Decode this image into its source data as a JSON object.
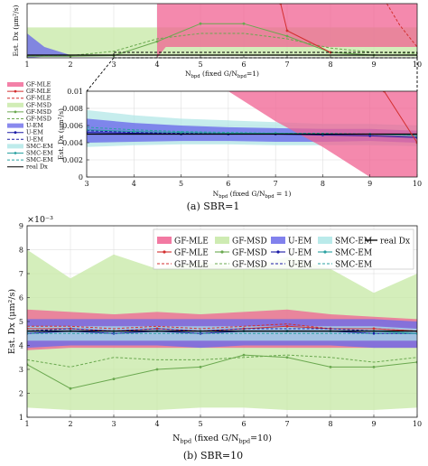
{
  "legend_entries": [
    {
      "name": "GF-MLE",
      "kind": "band",
      "color": "#f06292"
    },
    {
      "name": "GF-MLE",
      "kind": "line",
      "color": "#d32f2f",
      "marker": "dot"
    },
    {
      "name": "GF-MLE",
      "kind": "line",
      "color": "#d32f2f",
      "dash": true
    },
    {
      "name": "GF-MSD",
      "kind": "band",
      "color": "#c5e8a4"
    },
    {
      "name": "GF-MSD",
      "kind": "line",
      "color": "#6aa84f",
      "marker": "dot"
    },
    {
      "name": "GF-MSD",
      "kind": "line",
      "color": "#6aa84f",
      "dash": true
    },
    {
      "name": "U-EM",
      "kind": "band",
      "color": "#6b6bea"
    },
    {
      "name": "U-EM",
      "kind": "line",
      "color": "#1a1aa6",
      "marker": "dot"
    },
    {
      "name": "U-EM",
      "kind": "line",
      "color": "#1a1aa6",
      "dash": true
    },
    {
      "name": "SMC-EM",
      "kind": "band",
      "color": "#aee6e6"
    },
    {
      "name": "SMC-EM",
      "kind": "line",
      "color": "#2aa1a1",
      "marker": "dot"
    },
    {
      "name": "SMC-EM",
      "kind": "line",
      "color": "#2aa1a1",
      "dash": true
    },
    {
      "name": "real Dx",
      "kind": "line",
      "color": "#000000"
    }
  ],
  "captions": {
    "a": "(a)  SBR=1",
    "b": "(b)  SBR=10"
  },
  "colors": {
    "gfmle_band": "#f06292",
    "gfmle_line": "#d32f2f",
    "gfmsd_band": "#c5e8a4",
    "gfmsd_line": "#6aa84f",
    "uem_band": "#6b6bea",
    "uem_line": "#1a1aa6",
    "smcem_band": "#aee6e6",
    "smcem_line": "#2aa1a1",
    "real": "#000000"
  },
  "chart_data": [
    {
      "type": "line",
      "id": "a-top",
      "xlabel": "N_bpd (fixed G/N_bpd=1)",
      "ylabel": "Est. Dx (μm²/s)",
      "xlim": [
        1,
        10
      ],
      "ylim": [
        0,
        0.1
      ],
      "xticks": [
        1,
        2,
        3,
        4,
        5,
        6,
        7,
        8,
        9,
        10
      ],
      "yticks": [],
      "grid": true,
      "x": [
        1,
        2,
        3,
        4,
        5,
        6,
        7,
        8,
        9,
        10
      ],
      "bands": [
        {
          "name": "GF-MSD",
          "lower": [
            0.002,
            0.002,
            0.003,
            0.003,
            0.003,
            0.003,
            0.003,
            0.002,
            0.002,
            0.002
          ],
          "upper": [
            0.056,
            0.056,
            0.056,
            0.056,
            0.056,
            0.056,
            0.056,
            0.056,
            0.056,
            0.056
          ]
        },
        {
          "name": "GF-MLE",
          "x": [
            4.0,
            4.2,
            5,
            6,
            7,
            8,
            9,
            10
          ],
          "lower": [
            0.0,
            0.02,
            0.02,
            0.02,
            0.02,
            0.02,
            0.02,
            0.02
          ],
          "upper": [
            0.1,
            0.1,
            0.1,
            0.1,
            0.1,
            0.1,
            0.1,
            0.1
          ]
        },
        {
          "name": "U-EM",
          "x": [
            1,
            1.4,
            2
          ],
          "lower": [
            0.0,
            0.002,
            0.002
          ],
          "upper": [
            0.045,
            0.02,
            0.005
          ]
        }
      ],
      "series": [
        {
          "name": "GF-MSD",
          "style": "line",
          "values": [
            0.003,
            0.003,
            0.004,
            0.03,
            0.063,
            0.063,
            0.04,
            0.01,
            0.005,
            0.005
          ]
        },
        {
          "name": "GF-MSD",
          "style": "dash",
          "values": [
            0.004,
            0.004,
            0.012,
            0.035,
            0.045,
            0.045,
            0.035,
            0.018,
            0.01,
            0.008
          ]
        },
        {
          "name": "GF-MLE",
          "style": "line",
          "x": [
            6.85,
            7.0,
            8.0
          ],
          "values": [
            0.1,
            0.05,
            0.01
          ]
        },
        {
          "name": "GF-MLE",
          "style": "dash",
          "x": [
            9.3,
            9.6,
            10
          ],
          "values": [
            0.1,
            0.06,
            0.02
          ]
        },
        {
          "name": "real Dx",
          "style": "line",
          "values": [
            0.005,
            0.005,
            0.005,
            0.005,
            0.005,
            0.005,
            0.005,
            0.005,
            0.005,
            0.005
          ]
        }
      ]
    },
    {
      "type": "line",
      "id": "a-zoom",
      "xlabel": "N_bpd (fixed G/N_bpd = 1)",
      "ylabel": "Est. Dx (μm²/s)",
      "xlim": [
        3,
        10
      ],
      "ylim": [
        0,
        0.01
      ],
      "xticks": [
        3,
        4,
        5,
        6,
        7,
        8,
        9,
        10
      ],
      "yticks": [
        0,
        0.002,
        0.004,
        0.006,
        0.008,
        0.01
      ],
      "ytick_labels": [
        "0",
        "0.002",
        "0.004",
        "0.006",
        "0.008",
        "0.01"
      ],
      "grid": true,
      "x": [
        3,
        4,
        5,
        6,
        7,
        8,
        9,
        10
      ],
      "bands": [
        {
          "name": "SMC-EM",
          "lower": [
            0.0035,
            0.0037,
            0.0038,
            0.0038,
            0.0037,
            0.0037,
            0.0037,
            0.0036
          ],
          "upper": [
            0.0078,
            0.0072,
            0.0068,
            0.0066,
            0.0064,
            0.0062,
            0.0062,
            0.006
          ]
        },
        {
          "name": "U-EM",
          "lower": [
            0.004,
            0.0041,
            0.0042,
            0.0042,
            0.0041,
            0.0041,
            0.0042,
            0.004
          ],
          "upper": [
            0.0068,
            0.0063,
            0.006,
            0.0058,
            0.0057,
            0.0056,
            0.0056,
            0.0054
          ]
        },
        {
          "name": "GF-MLE",
          "x": [
            6,
            7,
            8,
            9,
            10
          ],
          "lower": [
            0.01,
            0.0065,
            0.0035,
            0.0,
            0.0
          ],
          "upper": [
            0.01,
            0.01,
            0.01,
            0.01,
            0.01
          ]
        }
      ],
      "series": [
        {
          "name": "U-EM",
          "style": "line",
          "values": [
            0.0052,
            0.0051,
            0.005,
            0.005,
            0.005,
            0.0049,
            0.0048,
            0.0046
          ]
        },
        {
          "name": "U-EM",
          "style": "dash",
          "values": [
            0.0054,
            0.0052,
            0.0051,
            0.0051,
            0.005,
            0.005,
            0.005,
            0.0049
          ]
        },
        {
          "name": "SMC-EM",
          "style": "line",
          "values": [
            0.0055,
            0.0053,
            0.0052,
            0.0051,
            0.0051,
            0.005,
            0.005,
            0.0048
          ]
        },
        {
          "name": "SMC-EM",
          "style": "dash",
          "values": [
            0.0058,
            0.0055,
            0.0053,
            0.0052,
            0.0051,
            0.0051,
            0.005,
            0.0049
          ]
        },
        {
          "name": "real Dx",
          "style": "line",
          "values": [
            0.005,
            0.005,
            0.005,
            0.005,
            0.005,
            0.005,
            0.005,
            0.005
          ]
        },
        {
          "name": "GF-MLE",
          "style": "line",
          "x": [
            9.3,
            10
          ],
          "values": [
            0.01,
            0.004
          ]
        }
      ]
    },
    {
      "type": "line",
      "id": "b",
      "title": "",
      "exponent_label": "×10⁻³",
      "xlabel": "N_bpd (fixed G/N_bpd=10)",
      "ylabel": "Est. Dx (μm²/s)",
      "xlim": [
        1,
        10
      ],
      "ylim": [
        0.001,
        0.009
      ],
      "xticks": [
        1,
        2,
        3,
        4,
        5,
        6,
        7,
        8,
        9,
        10
      ],
      "yticks": [
        0.001,
        0.002,
        0.003,
        0.004,
        0.005,
        0.006,
        0.007,
        0.008,
        0.009
      ],
      "ytick_labels": [
        "1",
        "2",
        "3",
        "4",
        "5",
        "6",
        "7",
        "8",
        "9"
      ],
      "grid": true,
      "legend_position": "top-right",
      "x": [
        1,
        2,
        3,
        4,
        5,
        6,
        7,
        8,
        9,
        10
      ],
      "bands": [
        {
          "name": "GF-MSD",
          "lower": [
            0.0014,
            0.0013,
            0.0013,
            0.0013,
            0.0014,
            0.0014,
            0.0013,
            0.0013,
            0.0013,
            0.0014
          ],
          "upper": [
            0.008,
            0.0068,
            0.0078,
            0.0072,
            0.0075,
            0.0072,
            0.0077,
            0.0072,
            0.0062,
            0.007
          ]
        },
        {
          "name": "GF-MLE",
          "lower": [
            0.0038,
            0.0039,
            0.0039,
            0.0039,
            0.0039,
            0.0039,
            0.0039,
            0.0039,
            0.0039,
            0.0039
          ],
          "upper": [
            0.0055,
            0.0054,
            0.0053,
            0.0054,
            0.0053,
            0.0054,
            0.0055,
            0.0053,
            0.0052,
            0.0051
          ]
        },
        {
          "name": "U-EM",
          "lower": [
            0.0039,
            0.004,
            0.004,
            0.004,
            0.0039,
            0.004,
            0.004,
            0.004,
            0.0039,
            0.0039
          ],
          "upper": [
            0.0051,
            0.0051,
            0.0051,
            0.0051,
            0.0051,
            0.0051,
            0.0051,
            0.0051,
            0.0051,
            0.005
          ]
        },
        {
          "name": "SMC-EM",
          "lower": [
            0.0042,
            0.0042,
            0.0042,
            0.0042,
            0.0042,
            0.0042,
            0.0042,
            0.0042,
            0.0042,
            0.0042
          ],
          "upper": [
            0.0048,
            0.0048,
            0.0048,
            0.0048,
            0.0048,
            0.0048,
            0.0048,
            0.0048,
            0.0048,
            0.0047
          ]
        }
      ],
      "series": [
        {
          "name": "GF-MSD",
          "style": "line",
          "values": [
            0.0032,
            0.0022,
            0.0026,
            0.003,
            0.0031,
            0.0036,
            0.0035,
            0.0031,
            0.0031,
            0.0033
          ]
        },
        {
          "name": "GF-MSD",
          "style": "dash",
          "values": [
            0.0034,
            0.0031,
            0.0035,
            0.0034,
            0.0034,
            0.0035,
            0.0036,
            0.0035,
            0.0033,
            0.0035
          ]
        },
        {
          "name": "GF-MLE",
          "style": "line",
          "values": [
            0.0047,
            0.0047,
            0.0046,
            0.0047,
            0.0046,
            0.0047,
            0.0048,
            0.0047,
            0.0047,
            0.0046
          ]
        },
        {
          "name": "GF-MLE",
          "style": "dash",
          "values": [
            0.0048,
            0.0048,
            0.0047,
            0.0048,
            0.0047,
            0.0048,
            0.0049,
            0.0047,
            0.0047,
            0.0046
          ]
        },
        {
          "name": "U-EM",
          "style": "line",
          "values": [
            0.0045,
            0.0046,
            0.0045,
            0.0046,
            0.0045,
            0.0046,
            0.0046,
            0.0046,
            0.0045,
            0.0045
          ]
        },
        {
          "name": "U-EM",
          "style": "dash",
          "values": [
            0.0046,
            0.0047,
            0.0046,
            0.0047,
            0.0046,
            0.0047,
            0.0047,
            0.0047,
            0.0046,
            0.0046
          ]
        },
        {
          "name": "SMC-EM",
          "style": "line",
          "values": [
            0.0046,
            0.0046,
            0.0046,
            0.0046,
            0.0046,
            0.0046,
            0.0046,
            0.0046,
            0.0046,
            0.0045
          ]
        },
        {
          "name": "SMC-EM",
          "style": "dash",
          "values": [
            0.0045,
            0.0045,
            0.0045,
            0.0045,
            0.0045,
            0.0045,
            0.0045,
            0.0045,
            0.0045,
            0.0045
          ]
        },
        {
          "name": "real Dx",
          "style": "line",
          "values": [
            0.0046,
            0.0046,
            0.0046,
            0.0046,
            0.0046,
            0.0046,
            0.0046,
            0.0046,
            0.0046,
            0.0046
          ]
        }
      ]
    }
  ]
}
